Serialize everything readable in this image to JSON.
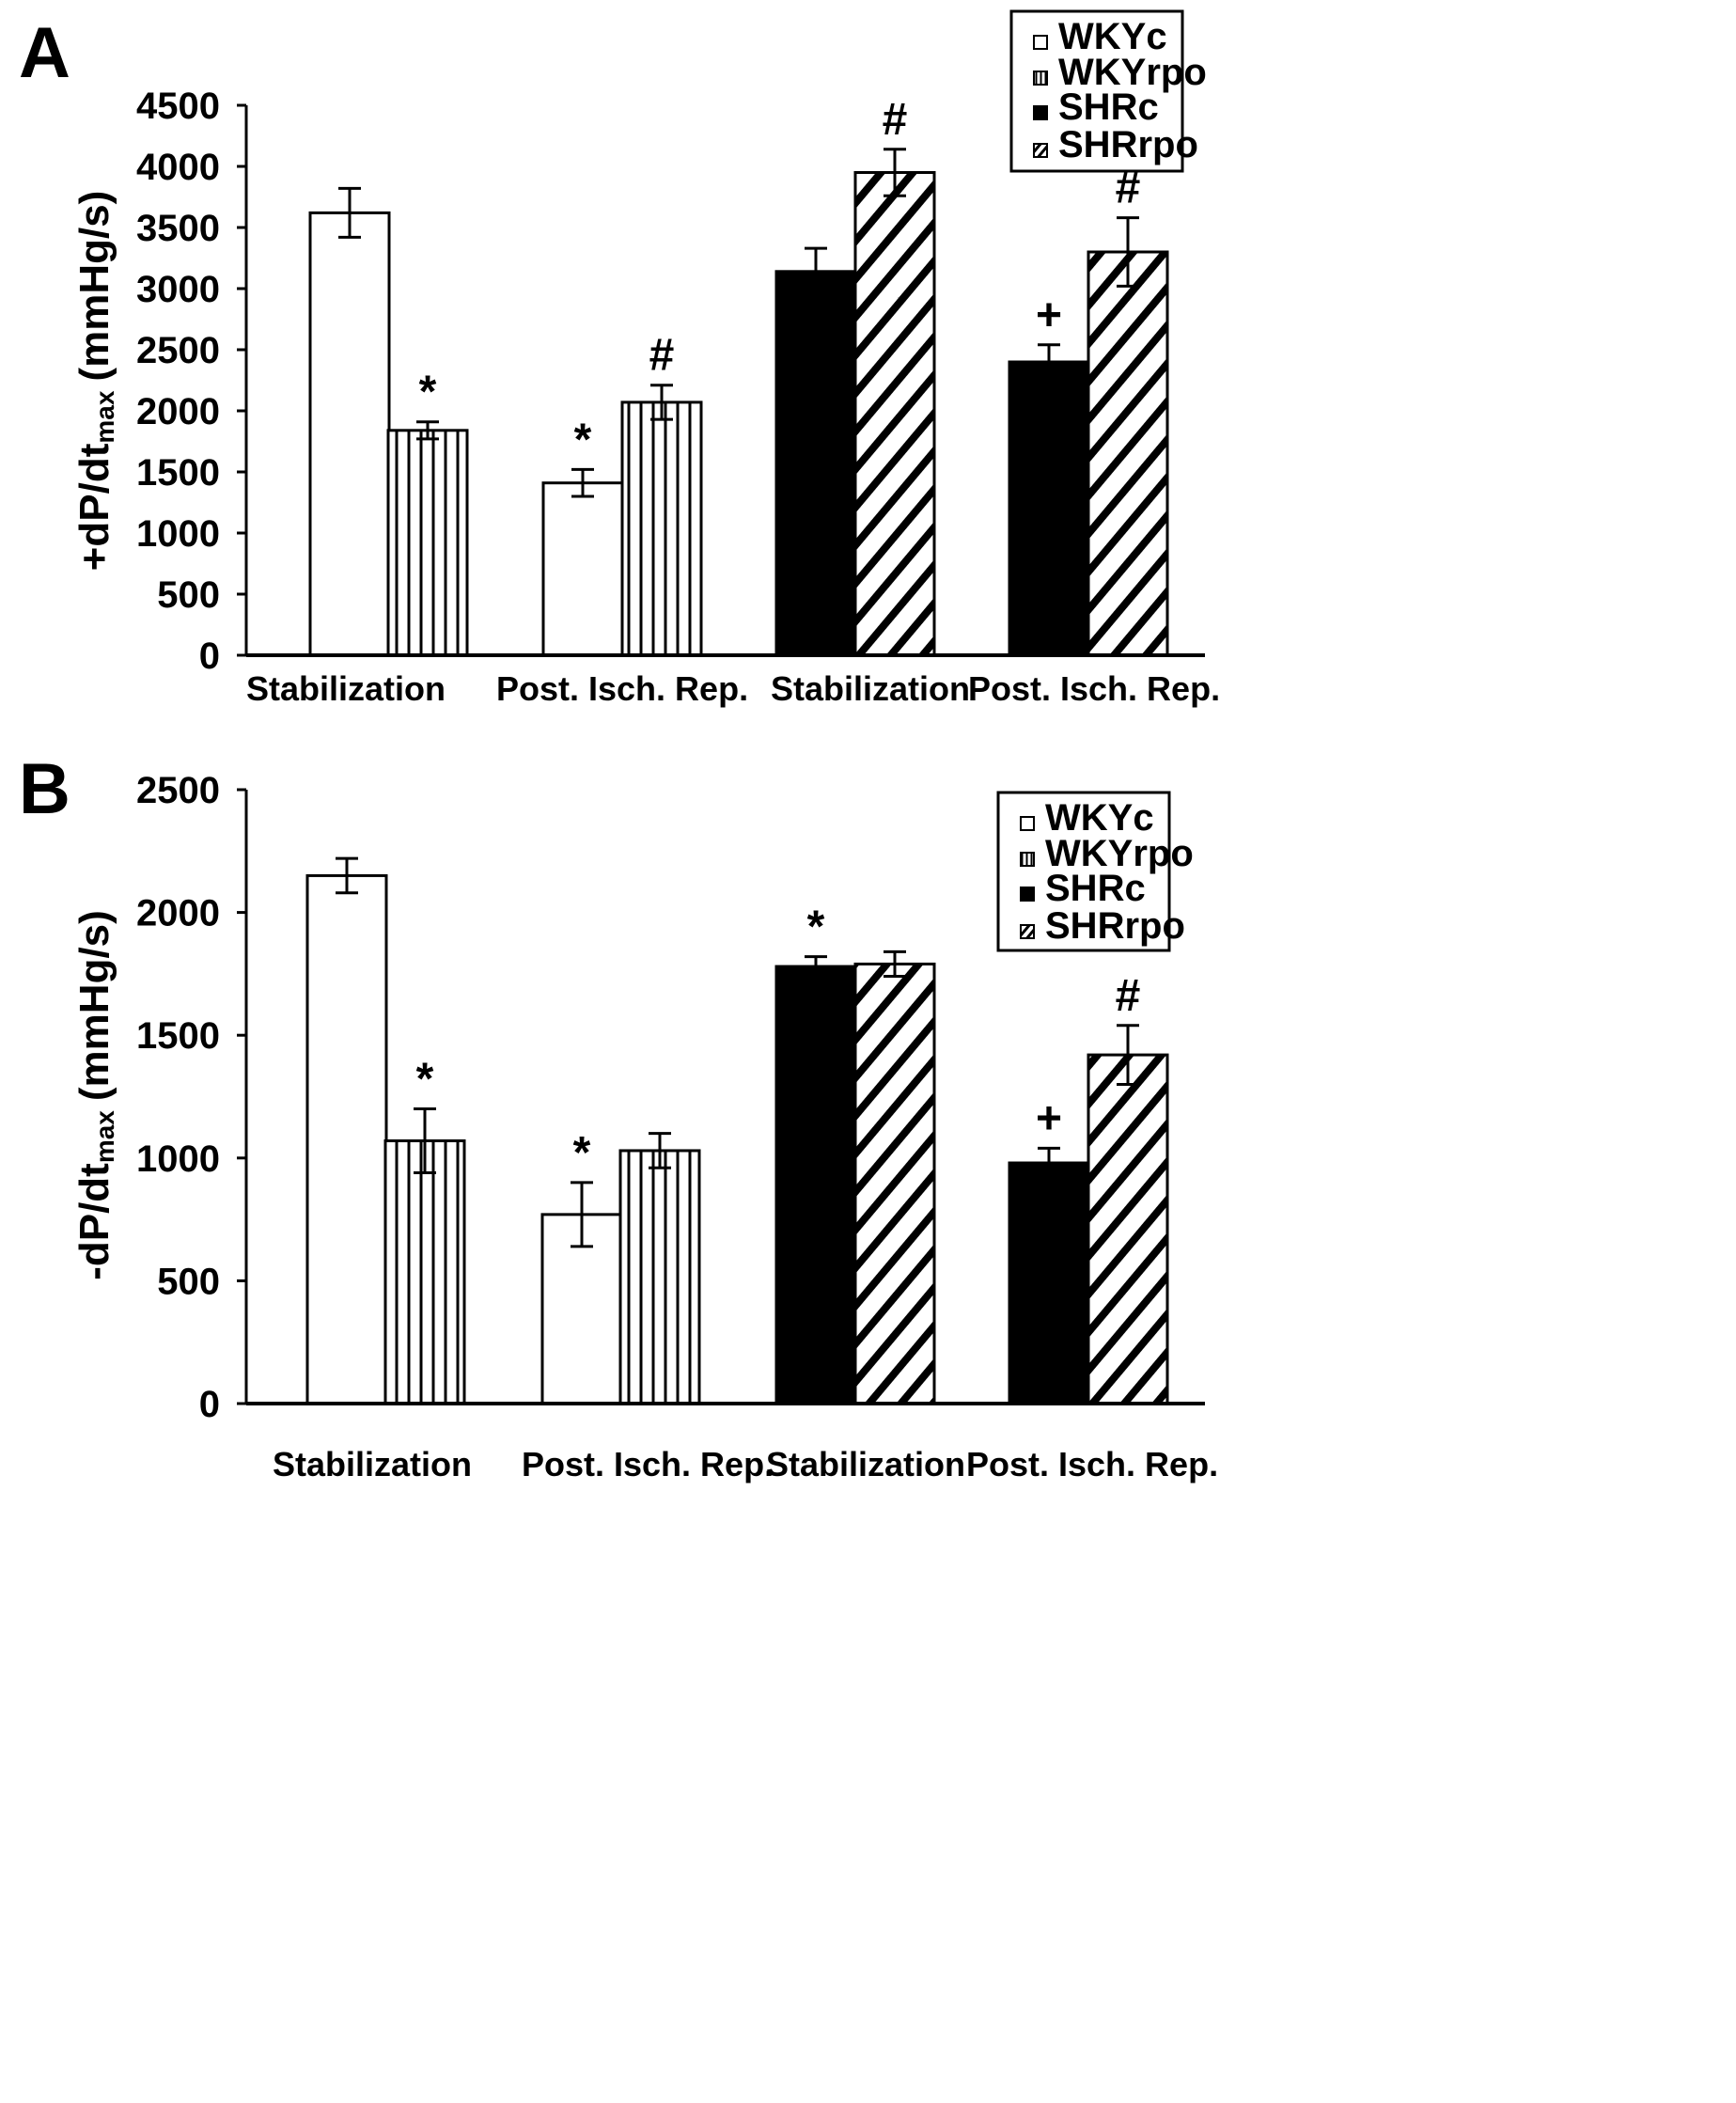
{
  "chart_data": [
    {
      "panel": "A",
      "type": "bar",
      "ylabel": "+dP/dt",
      "ylabel_sub": "max",
      "ylabel_unit": "(mmHg/s)",
      "ylim": [
        0,
        4500
      ],
      "yticks": [
        0,
        500,
        1000,
        1500,
        2000,
        2500,
        3000,
        3500,
        4000,
        4500
      ],
      "legend": [
        "WKYc",
        "WKYrpo",
        "SHRc",
        "SHRrpo"
      ],
      "groups": [
        {
          "label": "Stabilization",
          "bars": [
            {
              "series": "WKYc",
              "value": 3620,
              "err": 200,
              "sig": ""
            },
            {
              "series": "WKYrpo",
              "value": 1840,
              "err": 70,
              "sig": "*"
            }
          ]
        },
        {
          "label": "Post. Isch. Rep.",
          "bars": [
            {
              "series": "WKYc",
              "value": 1410,
              "err": 110,
              "sig": "*"
            },
            {
              "series": "WKYrpo",
              "value": 2070,
              "err": 140,
              "sig": "#"
            }
          ]
        },
        {
          "label": "Stabilization",
          "bars": [
            {
              "series": "SHRc",
              "value": 3140,
              "err": 190,
              "sig": ""
            },
            {
              "series": "SHRrpo",
              "value": 3950,
              "err": 190,
              "sig": "#"
            }
          ]
        },
        {
          "label": "Post. Isch. Rep.",
          "bars": [
            {
              "series": "SHRc",
              "value": 2400,
              "err": 140,
              "sig": "+"
            },
            {
              "series": "SHRrpo",
              "value": 3300,
              "err": 280,
              "sig": "#"
            }
          ]
        }
      ]
    },
    {
      "panel": "B",
      "type": "bar",
      "ylabel": "-dP/dt",
      "ylabel_sub": "max",
      "ylabel_unit": "(mmHg/s)",
      "ylim": [
        0,
        2500
      ],
      "yticks": [
        0,
        500,
        1000,
        1500,
        2000,
        2500
      ],
      "legend": [
        "WKYc",
        "WKYrpo",
        "SHRc",
        "SHRrpo"
      ],
      "groups": [
        {
          "label": "Stabilization",
          "bars": [
            {
              "series": "WKYc",
              "value": 2150,
              "err": 70,
              "sig": ""
            },
            {
              "series": "WKYrpo",
              "value": 1070,
              "err": 130,
              "sig": "*"
            }
          ]
        },
        {
          "label": "Post. Isch. Rep.",
          "bars": [
            {
              "series": "WKYc",
              "value": 770,
              "err": 130,
              "sig": "*"
            },
            {
              "series": "WKYrpo",
              "value": 1030,
              "err": 70,
              "sig": ""
            }
          ]
        },
        {
          "label": "Stabilization",
          "bars": [
            {
              "series": "SHRc",
              "value": 1780,
              "err": 40,
              "sig": "*"
            },
            {
              "series": "SHRrpo",
              "value": 1790,
              "err": 50,
              "sig": ""
            }
          ]
        },
        {
          "label": "Post. Isch. Rep.",
          "bars": [
            {
              "series": "SHRc",
              "value": 980,
              "err": 60,
              "sig": "+"
            },
            {
              "series": "SHRrpo",
              "value": 1420,
              "err": 120,
              "sig": "#"
            }
          ]
        }
      ]
    }
  ]
}
